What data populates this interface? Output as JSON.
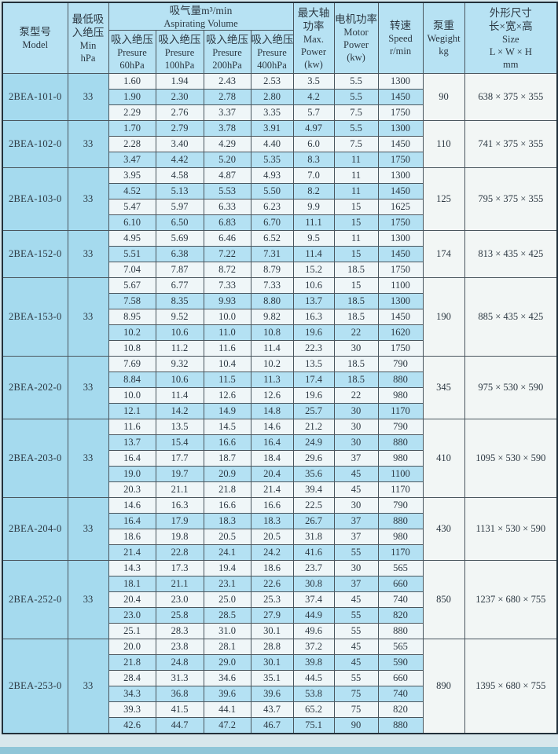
{
  "header": {
    "model": {
      "zh": "泵型号",
      "en": "Model"
    },
    "min": {
      "zh1": "最低吸",
      "zh2": "入绝压",
      "en1": "Min",
      "en2": "hPa"
    },
    "aspirating": {
      "zh": "吸气量m³/min",
      "en": "Aspirating Volume"
    },
    "pressure_cols": [
      {
        "zh": "吸入绝压",
        "en": "Presure",
        "value": "60hPa"
      },
      {
        "zh": "吸入绝压",
        "en": "Presure",
        "value": "100hPa"
      },
      {
        "zh": "吸入绝压",
        "en": "Presure",
        "value": "200hPa"
      },
      {
        "zh": "吸入绝压",
        "en": "Presure",
        "value": "400hPa"
      }
    ],
    "max_power": {
      "zh1": "最大轴",
      "zh2": "功率",
      "en1": "Max.",
      "en2": "Power",
      "en3": "(kw)"
    },
    "motor_power": {
      "zh": "电机功率",
      "en1": "Motor",
      "en2": "Power",
      "en3": "(kw)"
    },
    "speed": {
      "zh": "转速",
      "en1": "Speed",
      "en2": "r/min"
    },
    "weight": {
      "zh": "泵重",
      "en1": "Wegight",
      "en2": "kg"
    },
    "size": {
      "zh1": "外形尺寸",
      "zh2": "长×宽×高",
      "en1": "Size",
      "en2": "L × W × H",
      "en3": "mm"
    }
  },
  "groups": [
    {
      "model": "2BEA-101-0",
      "min_hpa": "33",
      "weight": "90",
      "size": "638 × 375 × 355",
      "rows": [
        [
          "1.60",
          "1.94",
          "2.43",
          "2.53",
          "3.5",
          "5.5",
          "1300"
        ],
        [
          "1.90",
          "2.30",
          "2.78",
          "2.80",
          "4.2",
          "5.5",
          "1450"
        ],
        [
          "2.29",
          "2.76",
          "3.37",
          "3.35",
          "5.7",
          "7.5",
          "1750"
        ]
      ]
    },
    {
      "model": "2BEA-102-0",
      "min_hpa": "33",
      "weight": "110",
      "size": "741 × 375 × 355",
      "rows": [
        [
          "1.70",
          "2.79",
          "3.78",
          "3.91",
          "4.97",
          "5.5",
          "1300"
        ],
        [
          "2.28",
          "3.40",
          "4.29",
          "4.40",
          "6.0",
          "7.5",
          "1450"
        ],
        [
          "3.47",
          "4.42",
          "5.20",
          "5.35",
          "8.3",
          "11",
          "1750"
        ]
      ]
    },
    {
      "model": "2BEA-103-0",
      "min_hpa": "33",
      "weight": "125",
      "size": "795 × 375 × 355",
      "rows": [
        [
          "3.95",
          "4.58",
          "4.87",
          "4.93",
          "7.0",
          "11",
          "1300"
        ],
        [
          "4.52",
          "5.13",
          "5.53",
          "5.50",
          "8.2",
          "11",
          "1450"
        ],
        [
          "5.47",
          "5.97",
          "6.33",
          "6.23",
          "9.9",
          "15",
          "1625"
        ],
        [
          "6.10",
          "6.50",
          "6.83",
          "6.70",
          "11.1",
          "15",
          "1750"
        ]
      ]
    },
    {
      "model": "2BEA-152-0",
      "min_hpa": "33",
      "weight": "174",
      "size": "813 × 435 × 425",
      "rows": [
        [
          "4.95",
          "5.69",
          "6.46",
          "6.52",
          "9.5",
          "11",
          "1300"
        ],
        [
          "5.51",
          "6.38",
          "7.22",
          "7.31",
          "11.4",
          "15",
          "1450"
        ],
        [
          "7.04",
          "7.87",
          "8.72",
          "8.79",
          "15.2",
          "18.5",
          "1750"
        ]
      ]
    },
    {
      "model": "2BEA-153-0",
      "min_hpa": "33",
      "weight": "190",
      "size": "885 × 435 × 425",
      "rows": [
        [
          "5.67",
          "6.77",
          "7.33",
          "7.33",
          "10.6",
          "15",
          "1100"
        ],
        [
          "7.58",
          "8.35",
          "9.93",
          "8.80",
          "13.7",
          "18.5",
          "1300"
        ],
        [
          "8.95",
          "9.52",
          "10.0",
          "9.82",
          "16.3",
          "18.5",
          "1450"
        ],
        [
          "10.2",
          "10.6",
          "11.0",
          "10.8",
          "19.6",
          "22",
          "1620"
        ],
        [
          "10.8",
          "11.2",
          "11.6",
          "11.4",
          "22.3",
          "30",
          "1750"
        ]
      ]
    },
    {
      "model": "2BEA-202-0",
      "min_hpa": "33",
      "weight": "345",
      "size": "975 × 530 × 590",
      "rows": [
        [
          "7.69",
          "9.32",
          "10.4",
          "10.2",
          "13.5",
          "18.5",
          "790"
        ],
        [
          "8.84",
          "10.6",
          "11.5",
          "11.3",
          "17.4",
          "18.5",
          "880"
        ],
        [
          "10.0",
          "11.4",
          "12.6",
          "12.6",
          "19.6",
          "22",
          "980"
        ],
        [
          "12.1",
          "14.2",
          "14.9",
          "14.8",
          "25.7",
          "30",
          "1170"
        ]
      ]
    },
    {
      "model": "2BEA-203-0",
      "min_hpa": "33",
      "weight": "410",
      "size": "1095 × 530 × 590",
      "rows": [
        [
          "11.6",
          "13.5",
          "14.5",
          "14.6",
          "21.2",
          "30",
          "790"
        ],
        [
          "13.7",
          "15.4",
          "16.6",
          "16.4",
          "24.9",
          "30",
          "880"
        ],
        [
          "16.4",
          "17.7",
          "18.7",
          "18.4",
          "29.6",
          "37",
          "980"
        ],
        [
          "19.0",
          "19.7",
          "20.9",
          "20.4",
          "35.6",
          "45",
          "1100"
        ],
        [
          "20.3",
          "21.1",
          "21.8",
          "21.4",
          "39.4",
          "45",
          "1170"
        ]
      ]
    },
    {
      "model": "2BEA-204-0",
      "min_hpa": "33",
      "weight": "430",
      "size": "1131 × 530 × 590",
      "rows": [
        [
          "14.6",
          "16.3",
          "16.6",
          "16.6",
          "22.5",
          "30",
          "790"
        ],
        [
          "16.4",
          "17.9",
          "18.3",
          "18.3",
          "26.7",
          "37",
          "880"
        ],
        [
          "18.6",
          "19.8",
          "20.5",
          "20.5",
          "31.8",
          "37",
          "980"
        ],
        [
          "21.4",
          "22.8",
          "24.1",
          "24.2",
          "41.6",
          "55",
          "1170"
        ]
      ]
    },
    {
      "model": "2BEA-252-0",
      "min_hpa": "33",
      "weight": "850",
      "size": "1237 × 680 × 755",
      "rows": [
        [
          "14.3",
          "17.3",
          "19.4",
          "18.6",
          "23.7",
          "30",
          "565"
        ],
        [
          "18.1",
          "21.1",
          "23.1",
          "22.6",
          "30.8",
          "37",
          "660"
        ],
        [
          "20.4",
          "23.0",
          "25.0",
          "25.3",
          "37.4",
          "45",
          "740"
        ],
        [
          "23.0",
          "25.8",
          "28.5",
          "27.9",
          "44.9",
          "55",
          "820"
        ],
        [
          "25.1",
          "28.3",
          "31.0",
          "30.1",
          "49.6",
          "55",
          "880"
        ]
      ]
    },
    {
      "model": "2BEA-253-0",
      "min_hpa": "33",
      "weight": "890",
      "size": "1395 × 680 × 755",
      "rows": [
        [
          "20.0",
          "23.8",
          "28.1",
          "28.8",
          "37.2",
          "45",
          "565"
        ],
        [
          "21.8",
          "24.8",
          "29.0",
          "30.1",
          "39.8",
          "45",
          "590"
        ],
        [
          "28.4",
          "31.3",
          "34.6",
          "35.1",
          "44.5",
          "55",
          "660"
        ],
        [
          "34.3",
          "36.8",
          "39.6",
          "39.6",
          "53.8",
          "75",
          "740"
        ],
        [
          "39.3",
          "41.5",
          "44.1",
          "43.7",
          "65.2",
          "75",
          "820"
        ],
        [
          "42.6",
          "44.7",
          "47.2",
          "46.7",
          "75.1",
          "90",
          "880"
        ]
      ]
    }
  ],
  "colors": {
    "header_blue": "#b7e2f3",
    "left_column_blue": "#a5daee",
    "row_blue": "#b4e1f3",
    "row_pale": "#eff6f8",
    "cell_white": "#f2f6f5",
    "border": "#4a565e"
  }
}
